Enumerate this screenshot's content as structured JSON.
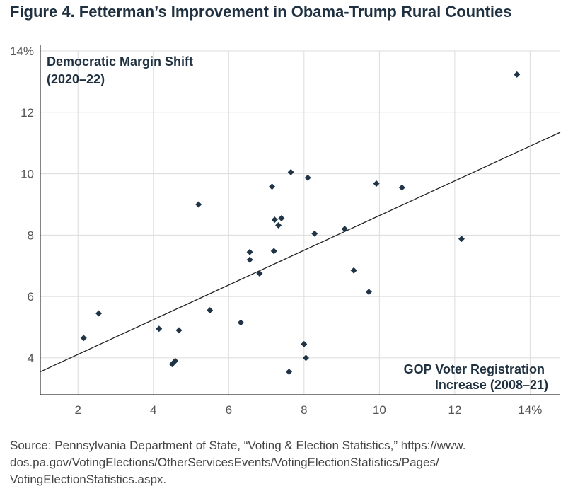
{
  "title": "Figure 4. Fetterman’s Improvement in Obama-Trump Rural Counties",
  "source_lines": [
    "Source: Pennsylvania Department of State, “Voting & Election Statistics,” https://www.",
    "dos.pa.gov/VotingElections/OtherServicesEvents/VotingElectionStatistics/Pages/",
    "VotingElectionStatistics.aspx."
  ],
  "chart_data": {
    "type": "scatter",
    "title": "Figure 4. Fetterman’s Improvement in Obama-Trump Rural Counties",
    "ylabel_lines": [
      "Democratic Margin Shift",
      "(2020–22)"
    ],
    "xlabel_lines": [
      "GOP Voter Registration",
      "Increase (2008–21)"
    ],
    "xlim": [
      1.0,
      14.8
    ],
    "ylim": [
      2.8,
      14.0
    ],
    "x_ticks": [
      2,
      4,
      6,
      8,
      10,
      12,
      14
    ],
    "x_tick_labels": [
      "2",
      "4",
      "6",
      "8",
      "10",
      "12",
      "14%"
    ],
    "y_ticks": [
      4,
      6,
      8,
      10,
      12,
      14
    ],
    "y_tick_labels": [
      "4",
      "6",
      "8",
      "10",
      "12",
      "14%"
    ],
    "grid": "vertical and horizontal",
    "marker_color": "#1f3447",
    "trendline_color": "#222222",
    "trendline": {
      "x": [
        1.0,
        14.8
      ],
      "y": [
        3.55,
        11.35
      ]
    },
    "points": [
      {
        "x": 2.15,
        "y": 4.65
      },
      {
        "x": 2.55,
        "y": 5.45
      },
      {
        "x": 4.15,
        "y": 4.95
      },
      {
        "x": 4.5,
        "y": 3.8
      },
      {
        "x": 4.58,
        "y": 3.9
      },
      {
        "x": 4.68,
        "y": 4.9
      },
      {
        "x": 5.2,
        "y": 9.0
      },
      {
        "x": 5.5,
        "y": 5.55
      },
      {
        "x": 6.32,
        "y": 5.15
      },
      {
        "x": 6.56,
        "y": 7.45
      },
      {
        "x": 6.56,
        "y": 7.2
      },
      {
        "x": 6.82,
        "y": 6.75
      },
      {
        "x": 7.15,
        "y": 9.58
      },
      {
        "x": 7.2,
        "y": 7.48
      },
      {
        "x": 7.22,
        "y": 8.5
      },
      {
        "x": 7.32,
        "y": 8.32
      },
      {
        "x": 7.4,
        "y": 8.55
      },
      {
        "x": 7.6,
        "y": 3.55
      },
      {
        "x": 7.65,
        "y": 10.05
      },
      {
        "x": 8.0,
        "y": 4.45
      },
      {
        "x": 8.05,
        "y": 4.0
      },
      {
        "x": 8.1,
        "y": 9.87
      },
      {
        "x": 8.28,
        "y": 8.05
      },
      {
        "x": 9.08,
        "y": 8.2
      },
      {
        "x": 9.32,
        "y": 6.85
      },
      {
        "x": 9.72,
        "y": 6.15
      },
      {
        "x": 9.92,
        "y": 9.68
      },
      {
        "x": 10.6,
        "y": 9.55
      },
      {
        "x": 12.18,
        "y": 7.88
      },
      {
        "x": 13.65,
        "y": 13.23
      }
    ]
  }
}
